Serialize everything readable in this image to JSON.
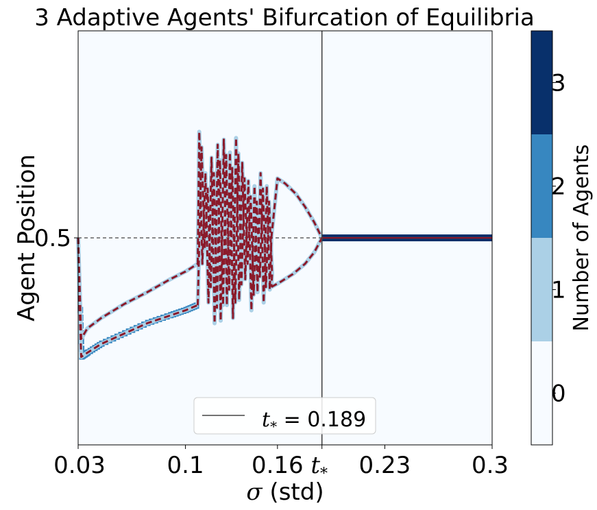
{
  "chart_data": {
    "type": "heatmap",
    "title": "3 Adaptive Agents' Bifurcation of Equilibria",
    "xlabel_symbol": "σ",
    "xlabel_text": " (std)",
    "ylabel": "Agent Position",
    "xlim": [
      0.03,
      0.3
    ],
    "ylim": [
      0.1,
      0.9
    ],
    "xticks": [
      {
        "value": 0.03,
        "label": "0.03"
      },
      {
        "value": 0.1,
        "label": "0.1"
      },
      {
        "value": 0.16,
        "label": "0.16"
      },
      {
        "value": 0.23,
        "label": "0.23"
      },
      {
        "value": 0.3,
        "label": "0.3"
      }
    ],
    "critical_tick_label": "t",
    "critical_tick_subscript": "*",
    "yticks": [
      {
        "value": 0.5,
        "label": "0.5"
      }
    ],
    "critical_value": 0.189,
    "legend": {
      "location": "lower center",
      "entries": [
        {
          "symbol": "t",
          "subscript": "*",
          "text": " = 0.189"
        }
      ]
    },
    "colorbar": {
      "label": "Number of Agents",
      "ticks": [
        "0",
        "1",
        "2",
        "3"
      ],
      "colors": [
        "#f7fbff",
        "#abd0e6",
        "#3787c0",
        "#08306b"
      ]
    },
    "background_color": "#f7fbff",
    "curve_color": "#8b1a2a",
    "highlight_color": "#abd0e6",
    "reference_line": {
      "y": 0.5,
      "style": "dashed",
      "color": "#444444"
    },
    "branches": {
      "upper_smooth": [
        [
          0.03,
          0.5
        ],
        [
          0.032,
          0.305
        ],
        [
          0.036,
          0.325
        ],
        [
          0.045,
          0.345
        ],
        [
          0.06,
          0.372
        ],
        [
          0.075,
          0.395
        ],
        [
          0.09,
          0.42
        ],
        [
          0.1,
          0.435
        ],
        [
          0.108,
          0.45
        ]
      ],
      "lower_smooth": [
        [
          0.03,
          0.5
        ],
        [
          0.031,
          0.36
        ],
        [
          0.032,
          0.27
        ],
        [
          0.036,
          0.278
        ],
        [
          0.045,
          0.295
        ],
        [
          0.06,
          0.315
        ],
        [
          0.075,
          0.335
        ],
        [
          0.09,
          0.35
        ],
        [
          0.1,
          0.36
        ],
        [
          0.108,
          0.37
        ]
      ],
      "pitchfork_upper": [
        [
          0.156,
          0.5
        ],
        [
          0.16,
          0.615
        ],
        [
          0.165,
          0.605
        ],
        [
          0.172,
          0.585
        ],
        [
          0.178,
          0.56
        ],
        [
          0.184,
          0.53
        ],
        [
          0.189,
          0.5
        ]
      ],
      "pitchfork_lower": [
        [
          0.156,
          0.405
        ],
        [
          0.162,
          0.415
        ],
        [
          0.17,
          0.43
        ],
        [
          0.178,
          0.45
        ],
        [
          0.184,
          0.472
        ],
        [
          0.189,
          0.5
        ]
      ],
      "merged": [
        [
          0.189,
          0.5
        ],
        [
          0.3,
          0.5
        ]
      ]
    },
    "oscillation_segment": {
      "x_start": 0.108,
      "x_end": 0.156,
      "peaks": [
        [
          0.109,
          0.705
        ],
        [
          0.113,
          0.625
        ],
        [
          0.117,
          0.655
        ],
        [
          0.121,
          0.68
        ],
        [
          0.125,
          0.69
        ],
        [
          0.129,
          0.665
        ],
        [
          0.133,
          0.693
        ],
        [
          0.137,
          0.645
        ],
        [
          0.141,
          0.61
        ],
        [
          0.145,
          0.6
        ],
        [
          0.149,
          0.625
        ],
        [
          0.153,
          0.6
        ]
      ],
      "troughs": [
        [
          0.111,
          0.45
        ],
        [
          0.115,
          0.375
        ],
        [
          0.119,
          0.335
        ],
        [
          0.123,
          0.34
        ],
        [
          0.127,
          0.37
        ],
        [
          0.131,
          0.345
        ],
        [
          0.135,
          0.38
        ],
        [
          0.139,
          0.42
        ],
        [
          0.143,
          0.36
        ],
        [
          0.147,
          0.395
        ],
        [
          0.151,
          0.375
        ],
        [
          0.155,
          0.4
        ]
      ]
    }
  }
}
